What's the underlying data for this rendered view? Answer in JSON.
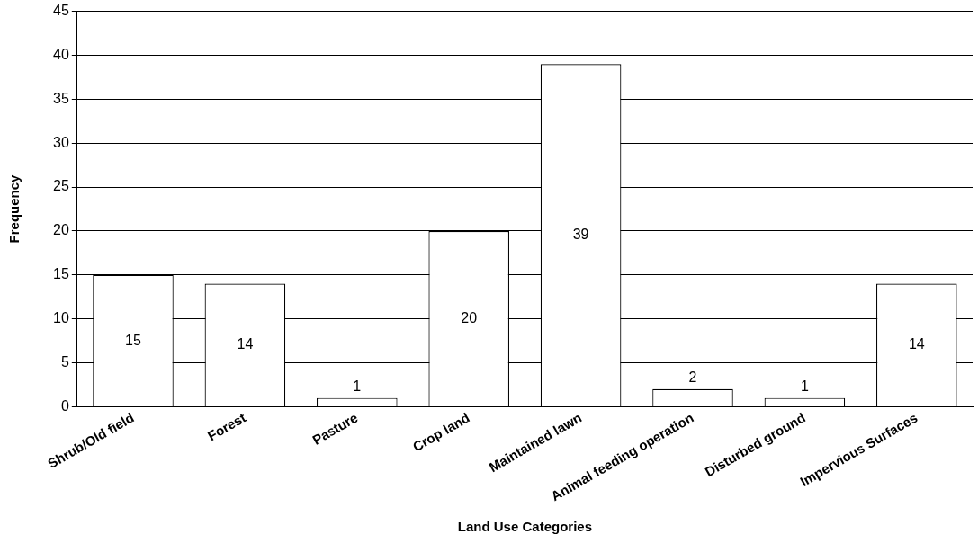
{
  "chart_data": {
    "type": "bar",
    "xlabel": "Land Use Categories",
    "ylabel": "Frequency",
    "categories": [
      "Shrub/Old field",
      "Forest",
      "Pasture",
      "Crop land",
      "Maintained lawn",
      "Animal feeding operation",
      "Disturbed ground",
      "Impervious Surfaces"
    ],
    "values": [
      15,
      14,
      1,
      20,
      39,
      2,
      1,
      14
    ],
    "color": "#ffffff",
    "ylim": [
      0,
      45
    ],
    "yticks": [
      0,
      5,
      10,
      15,
      20,
      25,
      30,
      35,
      40,
      45
    ],
    "grid": "y",
    "data_labels": true,
    "legend": false
  }
}
